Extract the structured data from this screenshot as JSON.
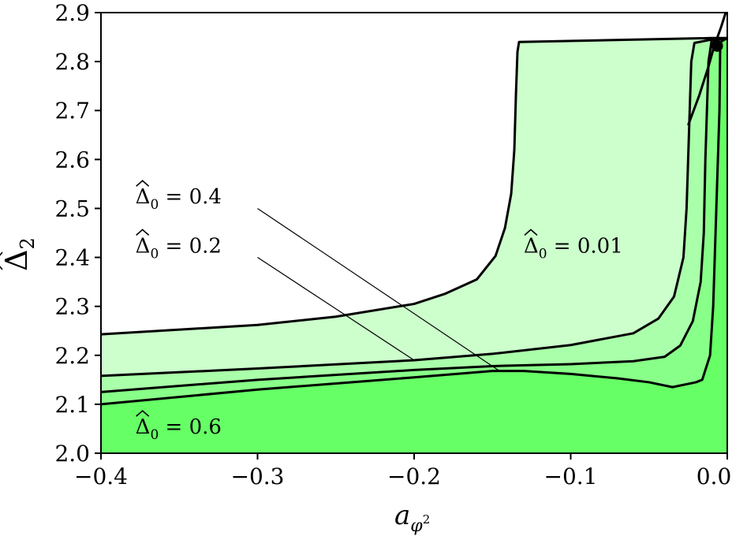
{
  "chart_data": {
    "type": "area",
    "xlabel": "a_{φ²}",
    "ylabel": "Δ̂₂",
    "xlim": [
      -0.4,
      0.0
    ],
    "ylim": [
      2.0,
      2.9
    ],
    "xticks": [
      -0.4,
      -0.3,
      -0.2,
      -0.1,
      0.0
    ],
    "xtick_labels": [
      "−0.4",
      "−0.3",
      "−0.2",
      "−0.1",
      "0.0"
    ],
    "yticks": [
      2.0,
      2.1,
      2.2,
      2.3,
      2.4,
      2.5,
      2.6,
      2.7,
      2.8,
      2.9
    ],
    "ytick_labels": [
      "2.0",
      "2.1",
      "2.2",
      "2.3",
      "2.4",
      "2.5",
      "2.6",
      "2.7",
      "2.8",
      "2.9"
    ],
    "grid": false,
    "series": [
      {
        "name": "Δ̂₀ = 0.01",
        "color": "#ccffcc",
        "boundary": [
          [
            -0.4,
            2.243
          ],
          [
            -0.3,
            2.262
          ],
          [
            -0.25,
            2.279
          ],
          [
            -0.2,
            2.305
          ],
          [
            -0.18,
            2.326
          ],
          [
            -0.16,
            2.355
          ],
          [
            -0.148,
            2.403
          ],
          [
            -0.142,
            2.46
          ],
          [
            -0.138,
            2.53
          ],
          [
            -0.136,
            2.62
          ],
          [
            -0.135,
            2.73
          ],
          [
            -0.134,
            2.82
          ],
          [
            -0.133,
            2.84
          ],
          [
            -0.01,
            2.848
          ],
          [
            0.0,
            2.848
          ]
        ]
      },
      {
        "name": "Δ̂₀ = 0.2",
        "color": "#aaffaa",
        "boundary": [
          [
            -0.4,
            2.158
          ],
          [
            -0.3,
            2.173
          ],
          [
            -0.2,
            2.19
          ],
          [
            -0.15,
            2.203
          ],
          [
            -0.1,
            2.221
          ],
          [
            -0.06,
            2.245
          ],
          [
            -0.044,
            2.275
          ],
          [
            -0.034,
            2.32
          ],
          [
            -0.028,
            2.4
          ],
          [
            -0.026,
            2.5
          ],
          [
            -0.025,
            2.6
          ],
          [
            -0.024,
            2.7
          ],
          [
            -0.023,
            2.8
          ],
          [
            -0.021,
            2.838
          ],
          [
            -0.01,
            2.845
          ],
          [
            0.0,
            2.848
          ]
        ]
      },
      {
        "name": "Δ̂₀ = 0.4",
        "color": "#88ff88",
        "boundary": [
          [
            -0.4,
            2.125
          ],
          [
            -0.3,
            2.15
          ],
          [
            -0.2,
            2.17
          ],
          [
            -0.15,
            2.178
          ],
          [
            -0.1,
            2.182
          ],
          [
            -0.06,
            2.188
          ],
          [
            -0.04,
            2.197
          ],
          [
            -0.03,
            2.22
          ],
          [
            -0.022,
            2.27
          ],
          [
            -0.017,
            2.35
          ],
          [
            -0.015,
            2.45
          ],
          [
            -0.014,
            2.6
          ],
          [
            -0.013,
            2.7
          ],
          [
            -0.012,
            2.8
          ],
          [
            -0.01,
            2.843
          ],
          [
            0.0,
            2.848
          ]
        ]
      },
      {
        "name": "Δ̂₀ = 0.6",
        "color": "#66ff66",
        "boundary": [
          [
            -0.4,
            2.1
          ],
          [
            -0.3,
            2.13
          ],
          [
            -0.2,
            2.155
          ],
          [
            -0.15,
            2.168
          ],
          [
            -0.13,
            2.168
          ],
          [
            -0.1,
            2.162
          ],
          [
            -0.07,
            2.153
          ],
          [
            -0.05,
            2.145
          ],
          [
            -0.035,
            2.135
          ],
          [
            -0.02,
            2.145
          ],
          [
            -0.016,
            2.15
          ],
          [
            -0.011,
            2.2
          ],
          [
            -0.009,
            2.3
          ],
          [
            -0.008,
            2.4
          ],
          [
            -0.007,
            2.5
          ],
          [
            -0.006,
            2.6
          ],
          [
            -0.005,
            2.7
          ],
          [
            -0.0045,
            2.84
          ],
          [
            0.0,
            2.848
          ]
        ]
      }
    ],
    "extra_curve": [
      [
        -0.025,
        2.67
      ],
      [
        -0.018,
        2.73
      ],
      [
        -0.012,
        2.79
      ],
      [
        -0.0085,
        2.83
      ],
      [
        -0.004,
        2.87
      ],
      [
        -0.001,
        2.9
      ]
    ],
    "marker": {
      "x": -0.0065,
      "y": 2.832
    },
    "annotations": [
      {
        "text": "0.4",
        "pos": [
          -0.378,
          2.51
        ]
      },
      {
        "text": "0.2",
        "pos": [
          -0.378,
          2.41
        ]
      },
      {
        "text": "0.01",
        "pos": [
          -0.13,
          2.41
        ]
      },
      {
        "text": "0.6",
        "pos": [
          -0.378,
          2.04
        ]
      }
    ],
    "pointer_lines": [
      {
        "from": [
          -0.3,
          2.5
        ],
        "to": [
          -0.145,
          2.167
        ]
      },
      {
        "from": [
          -0.3,
          2.4
        ],
        "to": [
          -0.2,
          2.19
        ]
      }
    ]
  }
}
